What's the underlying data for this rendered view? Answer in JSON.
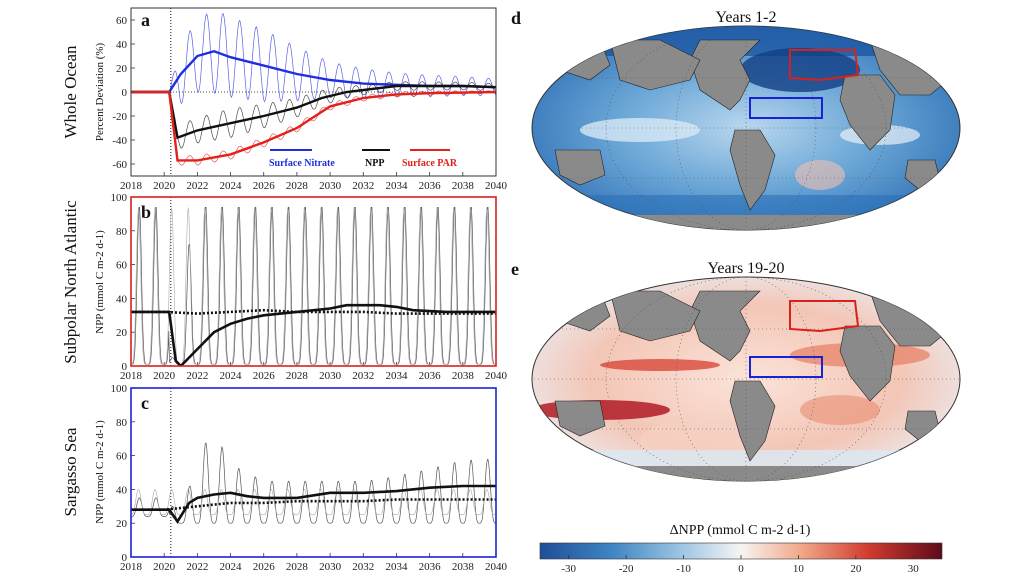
{
  "rows": {
    "a": "Whole Ocean",
    "b": "Subpolar North Atlantic",
    "c": "Sargasso Sea"
  },
  "letters": {
    "a": "a",
    "b": "b",
    "c": "c",
    "d": "d",
    "e": "e"
  },
  "ylabels": {
    "a": "Percent Deviation (%)",
    "b": "NPP (mmol C m-2 d-1)",
    "c": "NPP (mmol C m-2 d-1)"
  },
  "colors": {
    "nitrate": "#1f2ee0",
    "npp": "#111111",
    "par": "#e0211c",
    "subpolar_box": "#d8211b",
    "sargasso_box": "#1a22d6",
    "land": "#8a8a8a"
  },
  "legend": {
    "nitrate": "Surface Nitrate",
    "npp": "NPP",
    "par": "Surface PAR"
  },
  "maps": {
    "d_title": "Years 1-2",
    "e_title": "Years 19-20",
    "colorbar_label": "ΔNPP (mmol C m-2 d-1)",
    "colorbar_ticks": [
      "-30",
      "-20",
      "-10",
      "0",
      "10",
      "20",
      "30"
    ]
  },
  "chart_data": [
    {
      "id": "a",
      "type": "line",
      "xlim": [
        2018,
        2040
      ],
      "ylim": [
        -70,
        70
      ],
      "xticks": [
        2018,
        2020,
        2022,
        2024,
        2026,
        2028,
        2030,
        2032,
        2034,
        2036,
        2038,
        2040
      ],
      "yticks": [
        -60,
        -40,
        -20,
        0,
        20,
        40,
        60
      ],
      "event_x": 2020.4,
      "series": [
        {
          "name": "Surface Nitrate",
          "key": "nitrate",
          "smooth": [
            [
              2018,
              0
            ],
            [
              2020.3,
              0
            ],
            [
              2021,
              15
            ],
            [
              2022,
              30
            ],
            [
              2023,
              34
            ],
            [
              2024,
              29
            ],
            [
              2026,
              22
            ],
            [
              2028,
              15
            ],
            [
              2030,
              10
            ],
            [
              2032,
              7
            ],
            [
              2034,
              6
            ],
            [
              2036,
              5
            ],
            [
              2038,
              5
            ],
            [
              2040,
              4
            ]
          ],
          "seasonal_amp": [
            [
              2020.3,
              0
            ],
            [
              2021,
              25
            ],
            [
              2023,
              35
            ],
            [
              2026,
              30
            ],
            [
              2030,
              15
            ],
            [
              2034,
              10
            ],
            [
              2040,
              7
            ]
          ]
        },
        {
          "name": "NPP",
          "key": "npp",
          "smooth": [
            [
              2018,
              0
            ],
            [
              2020.3,
              0
            ],
            [
              2020.8,
              -38
            ],
            [
              2022,
              -32
            ],
            [
              2024,
              -26
            ],
            [
              2026,
              -20
            ],
            [
              2028,
              -13
            ],
            [
              2029.5,
              -5
            ],
            [
              2031,
              0
            ],
            [
              2034,
              5
            ],
            [
              2036,
              5
            ],
            [
              2038,
              5
            ],
            [
              2040,
              4
            ]
          ],
          "seasonal_amp": [
            [
              2020.3,
              0
            ],
            [
              2021,
              10
            ],
            [
              2024,
              12
            ],
            [
              2028,
              8
            ],
            [
              2032,
              4
            ],
            [
              2040,
              3
            ]
          ]
        },
        {
          "name": "Surface PAR",
          "key": "par",
          "smooth": [
            [
              2018,
              0
            ],
            [
              2020.3,
              0
            ],
            [
              2020.8,
              -57
            ],
            [
              2022,
              -57
            ],
            [
              2024,
              -52
            ],
            [
              2026,
              -42
            ],
            [
              2028,
              -30
            ],
            [
              2030,
              -12
            ],
            [
              2032,
              -5
            ],
            [
              2034,
              -2
            ],
            [
              2036,
              -1
            ],
            [
              2040,
              0
            ]
          ],
          "seasonal_amp": [
            [
              2020.3,
              0
            ],
            [
              2021,
              4
            ],
            [
              2026,
              4
            ],
            [
              2030,
              3
            ],
            [
              2040,
              1
            ]
          ]
        }
      ]
    },
    {
      "id": "b",
      "type": "line",
      "xlim": [
        2018,
        2040
      ],
      "ylim": [
        0,
        100
      ],
      "xticks": [
        2018,
        2020,
        2022,
        2024,
        2026,
        2028,
        2030,
        2032,
        2034,
        2036,
        2038,
        2040
      ],
      "yticks": [
        0,
        20,
        40,
        60,
        80,
        100
      ],
      "event_x": 2020.4,
      "series": [
        {
          "name": "perturbed_smooth",
          "style": "solid-thick",
          "points": [
            [
              2018,
              32
            ],
            [
              2020.3,
              32
            ],
            [
              2020.7,
              3
            ],
            [
              2021,
              0
            ],
            [
              2022,
              10
            ],
            [
              2023,
              20
            ],
            [
              2024,
              25
            ],
            [
              2025,
              28
            ],
            [
              2026,
              30
            ],
            [
              2028,
              32
            ],
            [
              2030,
              34
            ],
            [
              2031,
              36
            ],
            [
              2033,
              36
            ],
            [
              2034,
              35
            ],
            [
              2035,
              33
            ],
            [
              2037,
              32
            ],
            [
              2040,
              32
            ]
          ]
        },
        {
          "name": "control_smooth",
          "style": "dotted-thick",
          "points": [
            [
              2018,
              32
            ],
            [
              2020,
              32
            ],
            [
              2022,
              31
            ],
            [
              2024,
              32
            ],
            [
              2026,
              33
            ],
            [
              2028,
              32
            ],
            [
              2030,
              32
            ],
            [
              2032,
              32
            ],
            [
              2034,
              31
            ],
            [
              2036,
              31
            ],
            [
              2038,
              31
            ],
            [
              2040,
              31
            ]
          ]
        }
      ],
      "seasonal": {
        "peak": 95,
        "trough": 1,
        "start_recovery": 2020.8
      }
    },
    {
      "id": "c",
      "type": "line",
      "xlim": [
        2018,
        2040
      ],
      "ylim": [
        0,
        100
      ],
      "xticks": [
        2018,
        2020,
        2022,
        2024,
        2026,
        2028,
        2030,
        2032,
        2034,
        2036,
        2038,
        2040
      ],
      "yticks": [
        0,
        20,
        40,
        60,
        80,
        100
      ],
      "event_x": 2020.4,
      "series": [
        {
          "name": "perturbed_smooth",
          "style": "solid-thick",
          "points": [
            [
              2018,
              28
            ],
            [
              2020.3,
              28
            ],
            [
              2020.8,
              21
            ],
            [
              2021.5,
              32
            ],
            [
              2022,
              35
            ],
            [
              2023,
              37
            ],
            [
              2024,
              38
            ],
            [
              2025,
              36
            ],
            [
              2026,
              35
            ],
            [
              2028,
              35
            ],
            [
              2030,
              38
            ],
            [
              2032,
              38
            ],
            [
              2034,
              39
            ],
            [
              2036,
              41
            ],
            [
              2038,
              42
            ],
            [
              2040,
              42
            ]
          ]
        },
        {
          "name": "control_smooth",
          "style": "dotted-thick",
          "points": [
            [
              2018,
              28
            ],
            [
              2020,
              28
            ],
            [
              2022,
              30
            ],
            [
              2024,
              32
            ],
            [
              2026,
              32
            ],
            [
              2028,
              33
            ],
            [
              2030,
              33
            ],
            [
              2032,
              33
            ],
            [
              2034,
              34
            ],
            [
              2036,
              34
            ],
            [
              2038,
              34
            ],
            [
              2040,
              34
            ]
          ]
        }
      ],
      "seasonal": {
        "peaks": [
          [
            2021.2,
            30
          ],
          [
            2021.6,
            45
          ],
          [
            2022.2,
            65
          ],
          [
            2023.1,
            73
          ],
          [
            2024,
            55
          ],
          [
            2025,
            50
          ],
          [
            2026,
            45
          ],
          [
            2027,
            45
          ],
          [
            2028,
            45
          ],
          [
            2029,
            45
          ],
          [
            2030,
            45
          ],
          [
            2031,
            45
          ],
          [
            2032,
            45
          ],
          [
            2033,
            46
          ],
          [
            2034,
            48
          ],
          [
            2035,
            50
          ],
          [
            2036,
            52
          ],
          [
            2037,
            55
          ],
          [
            2038,
            57
          ],
          [
            2039,
            58
          ],
          [
            2040,
            58
          ]
        ]
      }
    }
  ]
}
